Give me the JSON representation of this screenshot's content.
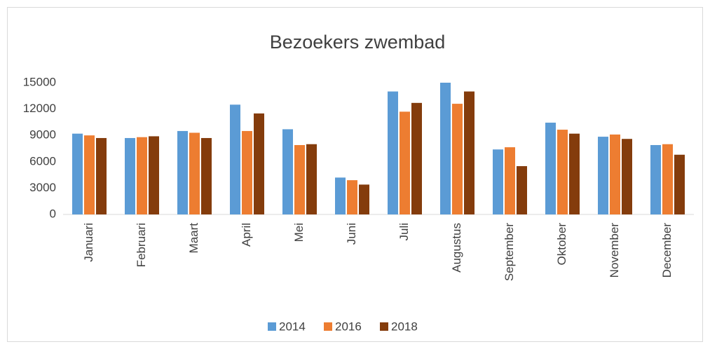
{
  "chart_data": {
    "type": "bar",
    "title": "Bezoekers zwembad",
    "categories": [
      "Januari",
      "Februari",
      "Maart",
      "April",
      "Mei",
      "Juni",
      "Juli",
      "Augustus",
      "September",
      "Oktober",
      "November",
      "December"
    ],
    "series": [
      {
        "name": "2014",
        "color": "#5b9bd5",
        "values": [
          9200,
          8700,
          9500,
          12500,
          9700,
          4200,
          14000,
          15000,
          7400,
          10450,
          8850,
          7900
        ]
      },
      {
        "name": "2016",
        "color": "#ed7d31",
        "values": [
          9000,
          8800,
          9300,
          9500,
          7900,
          3900,
          11700,
          12600,
          7650,
          9650,
          9100,
          8000
        ]
      },
      {
        "name": "2018",
        "color": "#843c0c",
        "values": [
          8700,
          8900,
          8700,
          11500,
          8000,
          3400,
          12700,
          14000,
          5500,
          9200,
          8600,
          6800
        ]
      }
    ],
    "ylim": [
      0,
      15000
    ],
    "yticks": [
      0,
      3000,
      6000,
      9000,
      12000,
      15000
    ],
    "grid": false,
    "legend": "bottom"
  }
}
